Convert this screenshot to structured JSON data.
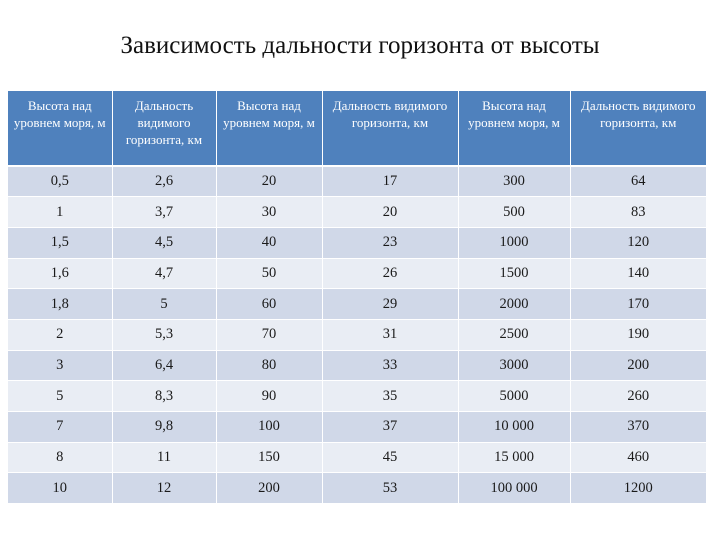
{
  "title": "Зависимость дальности горизонта от высоты",
  "table": {
    "headers": [
      "Высота над уровнем моря, м",
      "Дальность видимого горизонта, км",
      "Высота над уровнем моря, м",
      "Дальность видимого горизонта, км",
      "Высота над уровнем моря, м",
      "Дальность видимого горизонта, км"
    ],
    "rows": [
      [
        "0,5",
        "2,6",
        "20",
        "17",
        "300",
        "64"
      ],
      [
        "1",
        "3,7",
        "30",
        "20",
        "500",
        "83"
      ],
      [
        "1,5",
        "4,5",
        "40",
        "23",
        "1000",
        "120"
      ],
      [
        "1,6",
        "4,7",
        "50",
        "26",
        "1500",
        "140"
      ],
      [
        "1,8",
        "5",
        "60",
        "29",
        "2000",
        "170"
      ],
      [
        "2",
        "5,3",
        "70",
        "31",
        "2500",
        "190"
      ],
      [
        "3",
        "6,4",
        "80",
        "33",
        "3000",
        "200"
      ],
      [
        "5",
        "8,3",
        "90",
        "35",
        "5000",
        "260"
      ],
      [
        "7",
        "9,8",
        "100",
        "37",
        "10 000",
        "370"
      ],
      [
        "8",
        "11",
        "150",
        "45",
        "15 000",
        "460"
      ],
      [
        "10",
        "12",
        "200",
        "53",
        "100 000",
        "1200"
      ]
    ],
    "colors": {
      "header_bg": "#4f81bd",
      "row_odd_bg": "#d0d8e8",
      "row_even_bg": "#e9edf4"
    }
  }
}
